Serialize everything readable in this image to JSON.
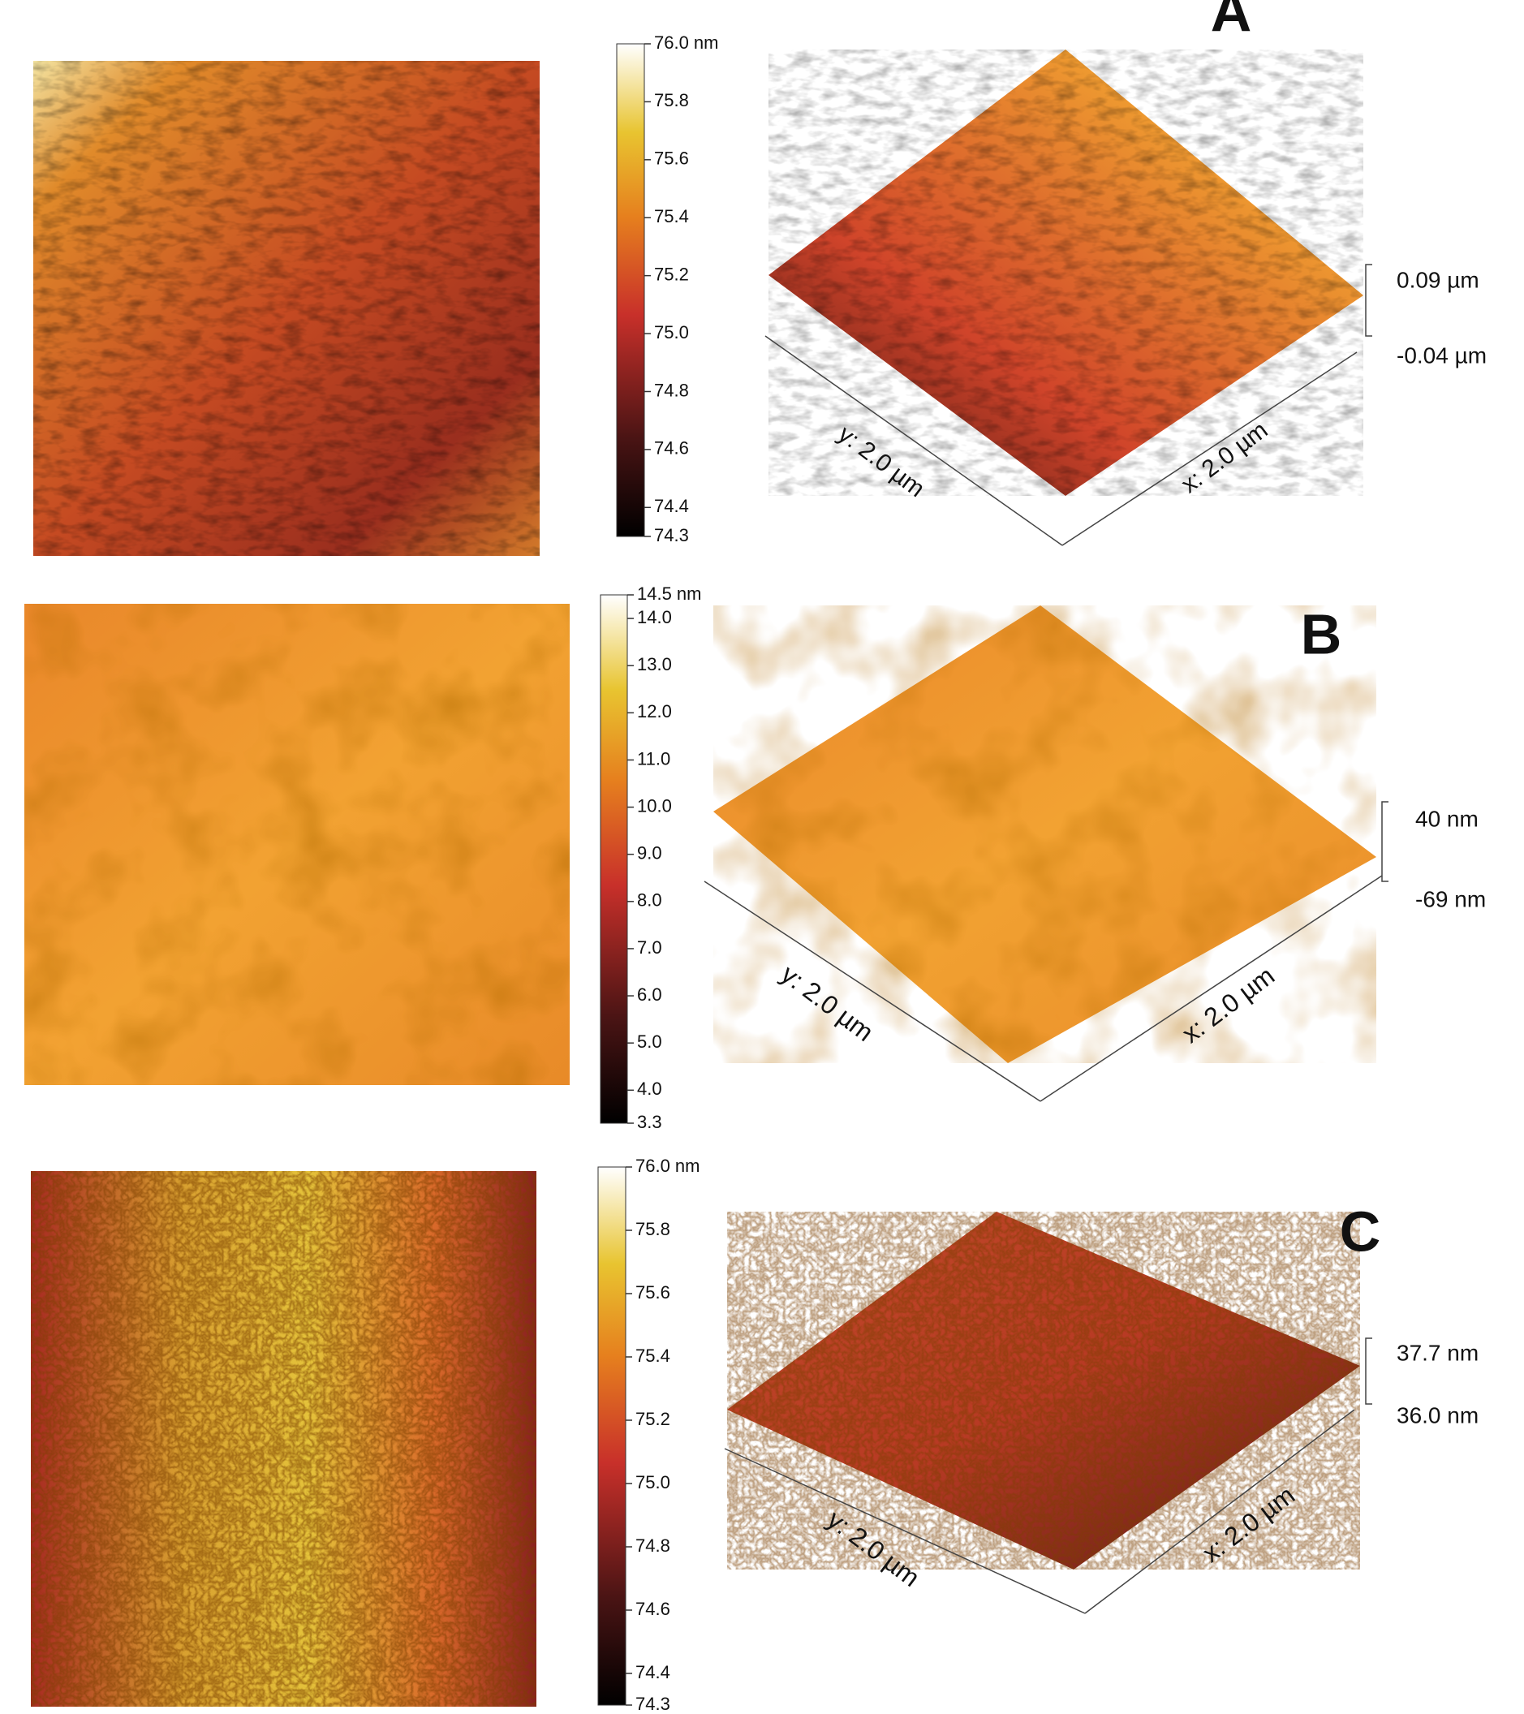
{
  "panels": [
    {
      "label": "A",
      "colorbar": {
        "ticks": [
          {
            "value": 76.0,
            "label": "76.0 nm"
          },
          75.8,
          75.6,
          75.4,
          75.2,
          {
            "value": 75.0,
            "label": "75.0"
          },
          74.8,
          74.6,
          74.4,
          74.3
        ]
      },
      "axes": {
        "y": "y: 2.0 µm",
        "x": "x: 2.0 µm"
      },
      "z_labels": [
        "0.09 µm",
        "-0.04 µm"
      ]
    },
    {
      "label": "B",
      "colorbar": {
        "ticks": [
          {
            "value": 14.5,
            "label": "14.5 nm"
          },
          {
            "value": 14.0,
            "label": "14.0"
          },
          {
            "value": 13.0,
            "label": "13.0"
          },
          {
            "value": 12.0,
            "label": "12.0"
          },
          {
            "value": 11.0,
            "label": "11.0"
          },
          {
            "value": 10.0,
            "label": "10.0"
          },
          {
            "value": 9.0,
            "label": "9.0"
          },
          {
            "value": 8.0,
            "label": "8.0"
          },
          {
            "value": 7.0,
            "label": "7.0"
          },
          {
            "value": 6.0,
            "label": "6.0"
          },
          {
            "value": 5.0,
            "label": "5.0"
          },
          {
            "value": 4.0,
            "label": "4.0"
          },
          3.3
        ]
      },
      "axes": {
        "y": "y: 2.0 µm",
        "x": "x: 2.0 µm"
      },
      "z_labels": [
        "40 nm",
        "-69 nm"
      ]
    },
    {
      "label": "C",
      "colorbar": {
        "ticks": [
          {
            "value": 76.0,
            "label": "76.0 nm"
          },
          75.8,
          75.6,
          75.4,
          75.2,
          {
            "value": 75.0,
            "label": "75.0"
          },
          74.8,
          74.6,
          74.4,
          74.3
        ]
      },
      "axes": {
        "y": "y: 2.0 µm",
        "x": "x: 2.0 µm"
      },
      "z_labels": [
        "37.7 nm",
        "36.0 nm"
      ]
    }
  ]
}
